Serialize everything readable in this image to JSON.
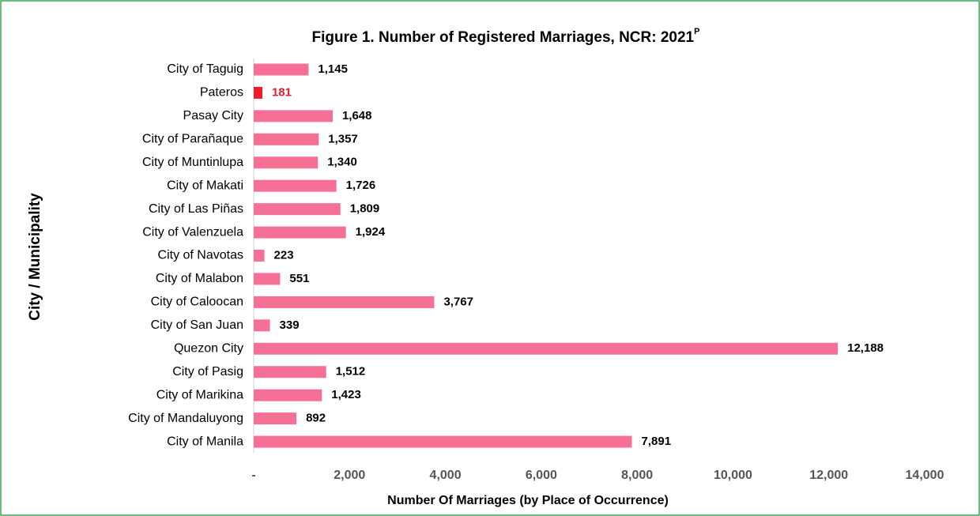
{
  "chart_data": {
    "type": "bar",
    "orientation": "horizontal",
    "title": "Figure 1.  Number of Registered Marriages, NCR: 2021",
    "title_superscript": "P",
    "x_label": "Number Of Marriages (by Place of Occurrence)",
    "y_label": "City / Municipality",
    "categories": [
      "City of  Taguig",
      "Pateros",
      "Pasay City",
      "City of Parañaque",
      "City of Muntinlupa",
      "City of Makati",
      "City of Las Piñas",
      "City of Valenzuela",
      "City of Navotas",
      "City of Malabon",
      "City of Caloocan",
      "City of San Juan",
      "Quezon City",
      "City of Pasig",
      "City of Marikina",
      "City of Mandaluyong",
      "City of Manila"
    ],
    "values": [
      1145,
      181,
      1648,
      1357,
      1340,
      1726,
      1809,
      1924,
      223,
      551,
      3767,
      339,
      12188,
      1512,
      1423,
      892,
      7891
    ],
    "value_labels": [
      "1,145",
      "181",
      "1,648",
      "1,357",
      "1,340",
      "1,726",
      "1,809",
      "1,924",
      "223",
      "551",
      "3,767",
      "339",
      "12,188",
      "1,512",
      "1,423",
      "892",
      "7,891"
    ],
    "colors": [
      "#f56f96",
      "#ee1c25",
      "#f56f96",
      "#f56f96",
      "#f56f96",
      "#f56f96",
      "#f56f96",
      "#f56f96",
      "#f56f96",
      "#f56f96",
      "#f56f96",
      "#f56f96",
      "#f56f96",
      "#f56f96",
      "#f56f96",
      "#f56f96",
      "#f56f96"
    ],
    "label_colors": [
      "#000000",
      "#ee1c25",
      "#000000",
      "#000000",
      "#000000",
      "#000000",
      "#000000",
      "#000000",
      "#000000",
      "#000000",
      "#000000",
      "#000000",
      "#000000",
      "#000000",
      "#000000",
      "#000000",
      "#000000"
    ],
    "xlim": [
      0,
      14000
    ],
    "xticks": [
      {
        "value": 0,
        "label": "-"
      },
      {
        "value": 2000,
        "label": "2,000"
      },
      {
        "value": 4000,
        "label": "4,000"
      },
      {
        "value": 6000,
        "label": "6,000"
      },
      {
        "value": 8000,
        "label": "8,000"
      },
      {
        "value": 10000,
        "label": "10,000"
      },
      {
        "value": 12000,
        "label": "12,000"
      },
      {
        "value": 14000,
        "label": "14,000"
      }
    ],
    "grid": false
  }
}
